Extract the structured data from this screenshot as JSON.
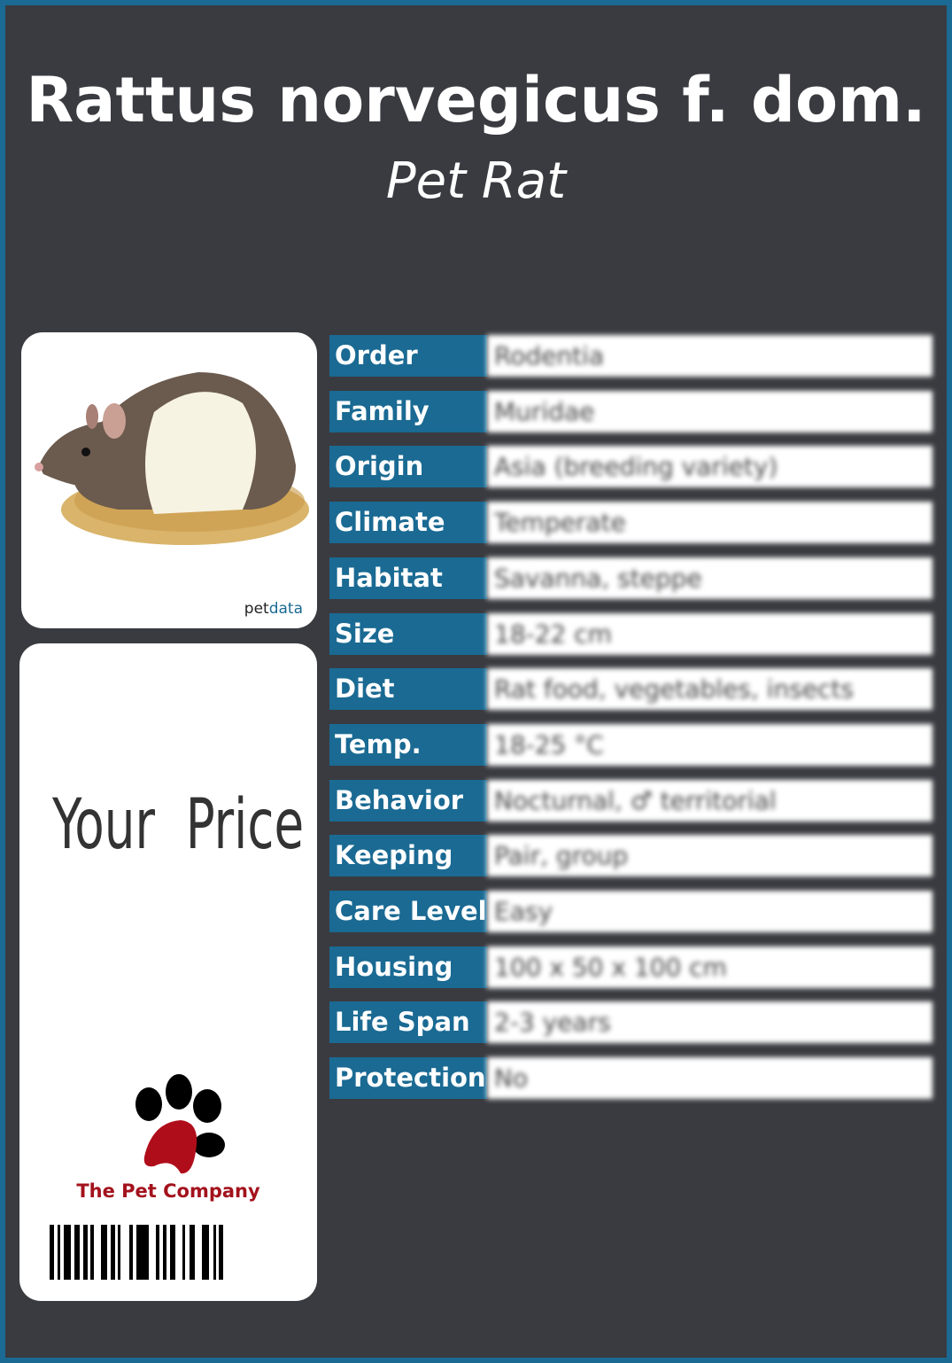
{
  "header": {
    "title": "Rattus norvegicus f. dom.",
    "subtitle": "Pet Rat"
  },
  "photo": {
    "brand_prefix": "pet",
    "brand_suffix": "data"
  },
  "price": {
    "label": "Your  Price"
  },
  "company": {
    "name": "The Pet Company",
    "logo_colors": {
      "pad": "#b00d1b",
      "toes": "#000000"
    }
  },
  "colors": {
    "accent": "#1a6a93",
    "background": "#3a3b40"
  },
  "facts": [
    {
      "label": "Order",
      "value": "Rodentia"
    },
    {
      "label": "Family",
      "value": "Muridae"
    },
    {
      "label": "Origin",
      "value": "Asia (breeding variety)"
    },
    {
      "label": "Climate",
      "value": "Temperate"
    },
    {
      "label": "Habitat",
      "value": "Savanna, steppe"
    },
    {
      "label": "Size",
      "value": "18-22 cm"
    },
    {
      "label": "Diet",
      "value": "Rat food, vegetables, insects"
    },
    {
      "label": "Temp.",
      "value": "18-25 °C"
    },
    {
      "label": "Behavior",
      "value": "Nocturnal, ♂ territorial"
    },
    {
      "label": "Keeping",
      "value": "Pair, group"
    },
    {
      "label": "Care Level",
      "value": "Easy"
    },
    {
      "label": "Housing",
      "value": "100 x 50 x 100 cm"
    },
    {
      "label": "Life Span",
      "value": "2-3 years"
    },
    {
      "label": "Protection",
      "value": "No"
    }
  ]
}
